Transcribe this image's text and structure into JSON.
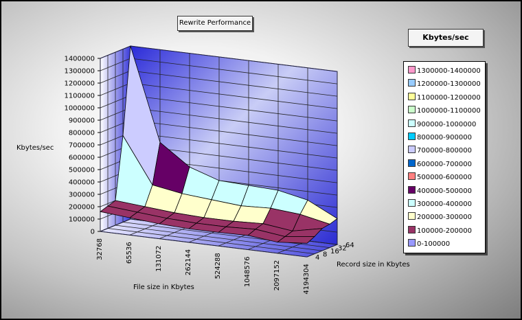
{
  "chart_data": {
    "type": "surface-3d",
    "title": "Rewrite Performance",
    "zlabel": "Kbytes/sec",
    "xlabel": "File size in Kbytes",
    "ylabel": "Record size in Kbytes",
    "zlim": [
      0,
      1400000
    ],
    "z_ticks": [
      "0",
      "100000",
      "200000",
      "300000",
      "400000",
      "500000",
      "600000",
      "700000",
      "800000",
      "900000",
      "1000000",
      "1100000",
      "1200000",
      "1300000",
      "1400000"
    ],
    "x_categories": [
      "32768",
      "65536",
      "131072",
      "262144",
      "524288",
      "1048576",
      "2097152",
      "4194304"
    ],
    "y_categories": [
      "4",
      "8",
      "16",
      "32",
      "64"
    ],
    "legend_title": "Kbytes/sec",
    "legend": [
      {
        "label": "1300000-1400000",
        "color": "#ff99cc"
      },
      {
        "label": "1200000-1300000",
        "color": "#99ccff"
      },
      {
        "label": "1100000-1200000",
        "color": "#ffff99"
      },
      {
        "label": "1000000-1100000",
        "color": "#ccffcc"
      },
      {
        "label": "900000-1000000",
        "color": "#ccffff"
      },
      {
        "label": "800000-900000",
        "color": "#00ccff"
      },
      {
        "label": "700000-800000",
        "color": "#ccccff"
      },
      {
        "label": "600000-700000",
        "color": "#0066cc"
      },
      {
        "label": "500000-600000",
        "color": "#ff8080"
      },
      {
        "label": "400000-500000",
        "color": "#660066"
      },
      {
        "label": "300000-400000",
        "color": "#ccffff"
      },
      {
        "label": "200000-300000",
        "color": "#ffffcc"
      },
      {
        "label": "100000-200000",
        "color": "#993366"
      },
      {
        "label": "0-100000",
        "color": "#9999ff"
      }
    ],
    "values": [
      [
        160000,
        140000,
        120000,
        110000,
        110000,
        115000,
        90000,
        110000
      ],
      [
        180000,
        160000,
        140000,
        130000,
        130000,
        140000,
        110000,
        140000
      ],
      [
        200000,
        180000,
        160000,
        150000,
        150000,
        160000,
        130000,
        180000
      ],
      [
        700000,
        330000,
        290000,
        270000,
        250000,
        260000,
        240000,
        190000
      ],
      [
        1400000,
        650000,
        480000,
        400000,
        390000,
        380000,
        330000,
        210000
      ]
    ]
  }
}
